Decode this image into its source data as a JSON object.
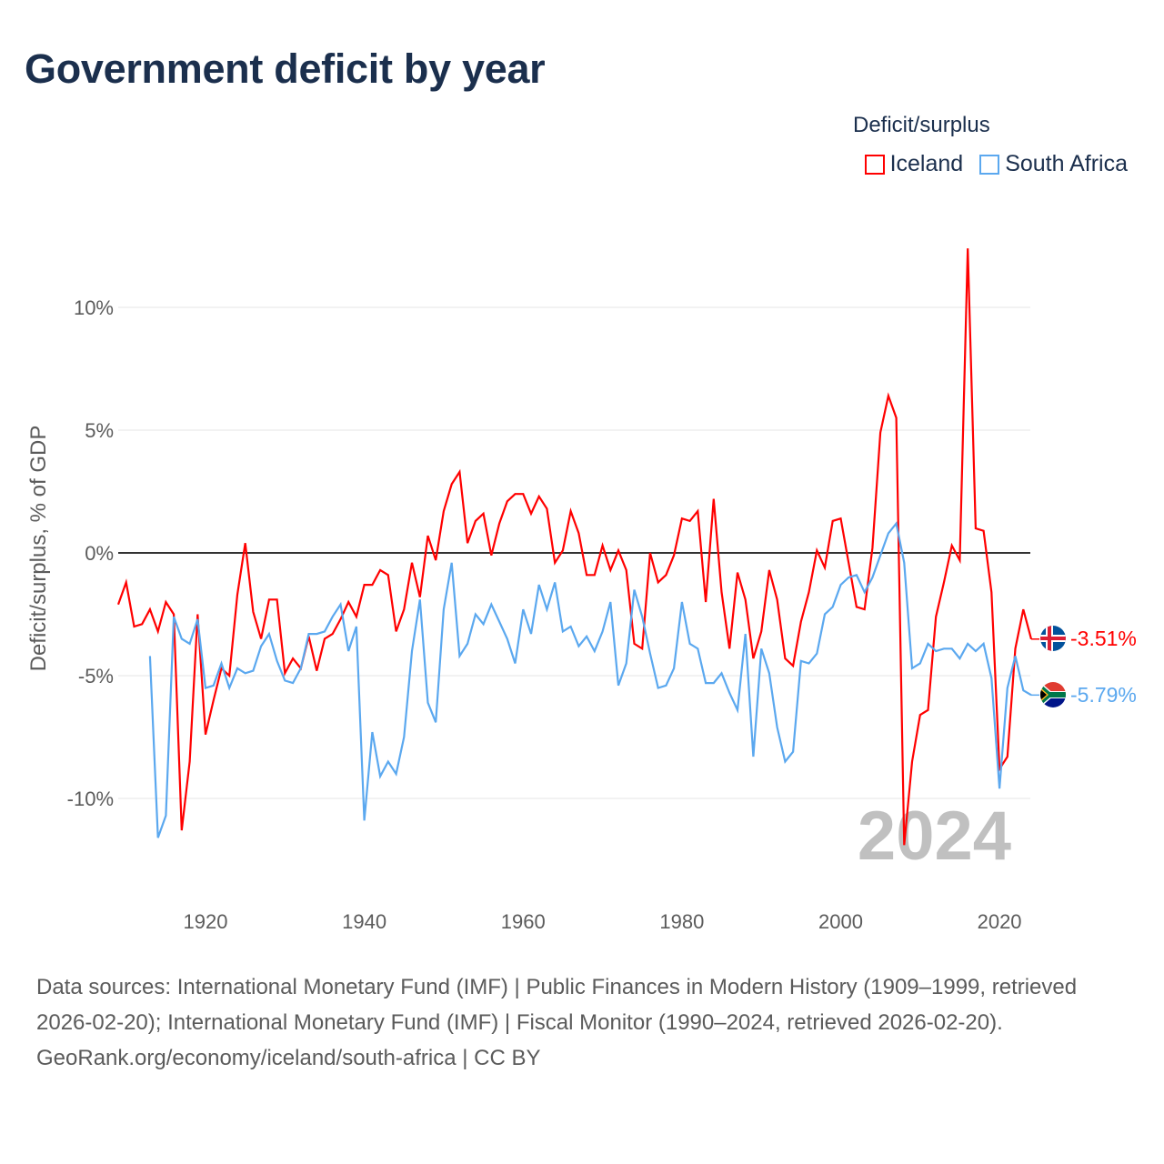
{
  "title": "Government deficit by year",
  "legend": {
    "title": "Deficit/surplus",
    "items": [
      {
        "label": "Iceland",
        "color": "#ff0000"
      },
      {
        "label": "South Africa",
        "color": "#5ba8ef"
      }
    ]
  },
  "year_watermark": "2024",
  "end_labels": {
    "iceland": "-3.51%",
    "south_africa": "-5.79%"
  },
  "footer": {
    "sources": "Data sources: International Monetary Fund (IMF) | Public Finances in Modern History (1909–1999, retrieved 2026-02-20); International Monetary Fund (IMF) | Fiscal Monitor (1990–2024, retrieved 2026-02-20).",
    "attribution": "GeoRank.org/economy/iceland/south-africa | CC BY"
  },
  "chart_data": {
    "type": "line",
    "title": "Government deficit by year",
    "xlabel": "",
    "ylabel": "Deficit/surplus, % of GDP",
    "xlim": [
      1909,
      2024
    ],
    "ylim": [
      -13,
      13
    ],
    "x_ticks": [
      1920,
      1940,
      1960,
      1980,
      2000,
      2020
    ],
    "y_ticks": [
      {
        "v": 10,
        "label": "10%"
      },
      {
        "v": 5,
        "label": "5%"
      },
      {
        "v": 0,
        "label": "0%"
      },
      {
        "v": -5,
        "label": "-5%"
      },
      {
        "v": -10,
        "label": "-10%"
      }
    ],
    "grid": true,
    "legend_position": "top-right",
    "series": [
      {
        "name": "Iceland",
        "color": "#ff0000",
        "start_year": 1909,
        "values": [
          -2.1,
          -1.2,
          -3.0,
          -2.9,
          -2.3,
          -3.2,
          -2.0,
          -2.5,
          -11.3,
          -8.5,
          -2.5,
          -7.4,
          -6.0,
          -4.7,
          -5.0,
          -1.7,
          0.4,
          -2.4,
          -3.5,
          -1.9,
          -1.9,
          -4.9,
          -4.3,
          -4.7,
          -3.4,
          -4.8,
          -3.5,
          -3.3,
          -2.7,
          -2.0,
          -2.6,
          -1.3,
          -1.3,
          -0.7,
          -0.9,
          -3.2,
          -2.3,
          -0.4,
          -1.8,
          0.7,
          -0.3,
          1.7,
          2.8,
          3.3,
          0.4,
          1.3,
          1.6,
          -0.1,
          1.2,
          2.1,
          2.4,
          2.4,
          1.6,
          2.3,
          1.8,
          -0.4,
          0.1,
          1.7,
          0.8,
          -0.9,
          -0.9,
          0.3,
          -0.7,
          0.1,
          -0.7,
          -3.7,
          -3.9,
          0.0,
          -1.2,
          -0.9,
          -0.1,
          1.4,
          1.3,
          1.7,
          -2.0,
          2.2,
          -1.6,
          -3.9,
          -0.8,
          -1.9,
          -4.3,
          -3.2,
          -0.7,
          -1.9,
          -4.3,
          -4.6,
          -2.8,
          -1.6,
          0.1,
          -0.6,
          1.3,
          1.4,
          -0.4,
          -2.2,
          -2.3,
          0.2,
          4.9,
          6.4,
          5.5,
          -11.9,
          -8.5,
          -6.6,
          -6.4,
          -2.6,
          -1.2,
          0.3,
          -0.3,
          12.4,
          1.0,
          0.9,
          -1.6,
          -8.8,
          -8.3,
          -3.9,
          -2.3,
          -3.51
        ]
      },
      {
        "name": "South Africa",
        "color": "#5ba8ef",
        "start_year": 1913,
        "values": [
          -4.2,
          -11.6,
          -10.7,
          -2.6,
          -3.5,
          -3.7,
          -2.7,
          -5.5,
          -5.4,
          -4.5,
          -5.5,
          -4.7,
          -4.9,
          -4.8,
          -3.8,
          -3.3,
          -4.4,
          -5.2,
          -5.3,
          -4.7,
          -3.3,
          -3.3,
          -3.2,
          -2.6,
          -2.1,
          -4.0,
          -3.0,
          -10.9,
          -7.3,
          -9.1,
          -8.5,
          -9.0,
          -7.5,
          -4.0,
          -1.9,
          -6.1,
          -6.9,
          -2.3,
          -0.4,
          -4.2,
          -3.7,
          -2.5,
          -2.9,
          -2.1,
          -2.8,
          -3.5,
          -4.5,
          -2.3,
          -3.3,
          -1.3,
          -2.3,
          -1.2,
          -3.2,
          -3.0,
          -3.8,
          -3.4,
          -4.0,
          -3.2,
          -2.0,
          -5.4,
          -4.5,
          -1.5,
          -2.6,
          -4.1,
          -5.5,
          -5.4,
          -4.7,
          -2.0,
          -3.7,
          -3.9,
          -5.3,
          -5.3,
          -4.9,
          -5.7,
          -6.4,
          -3.3,
          -8.3,
          -3.9,
          -4.9,
          -7.1,
          -8.5,
          -8.1,
          -4.4,
          -4.5,
          -4.1,
          -2.5,
          -2.2,
          -1.3,
          -1.0,
          -0.9,
          -1.6,
          -1.0,
          -0.1,
          0.8,
          1.2,
          -0.4,
          -4.7,
          -4.5,
          -3.7,
          -4.0,
          -3.9,
          -3.9,
          -4.3,
          -3.7,
          -4.0,
          -3.7,
          -5.1,
          -9.6,
          -5.5,
          -4.2,
          -5.6,
          -5.79
        ]
      }
    ]
  }
}
